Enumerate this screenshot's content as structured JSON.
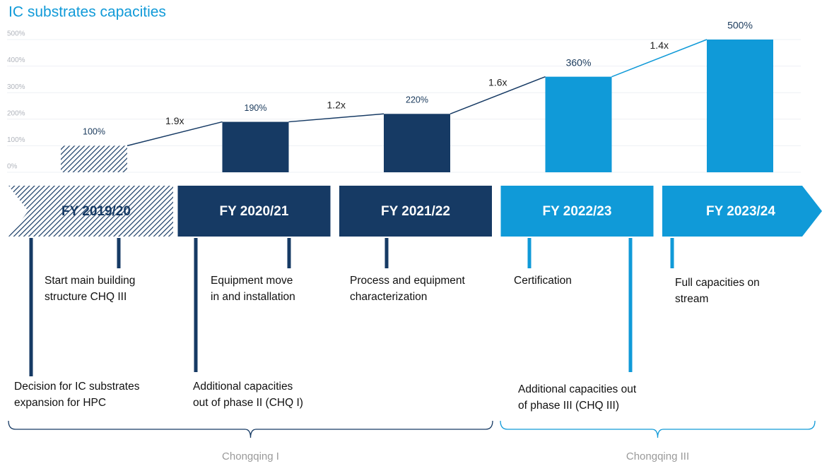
{
  "chart_data": {
    "type": "bar",
    "title": "IC substrates capacities",
    "categories": [
      "FY 2019/20",
      "FY 2020/21",
      "FY 2021/22",
      "FY 2022/23",
      "FY 2023/24"
    ],
    "values": [
      100,
      190,
      220,
      360,
      500
    ],
    "value_labels": [
      "100%",
      "190%",
      "220%",
      "360%",
      "500%"
    ],
    "colors": [
      "#163a64",
      "#163a64",
      "#163a64",
      "#109ad8",
      "#109ad8"
    ],
    "hatched": [
      true,
      false,
      false,
      false,
      false
    ],
    "growth_labels": [
      "1.9x",
      "1.2x",
      "1.6x",
      "1.4x"
    ],
    "ylim": [
      0,
      500
    ],
    "yticks": [
      {
        "value": 0,
        "label": "0%"
      },
      {
        "value": 100,
        "label": "100%"
      },
      {
        "value": 200,
        "label": "200%"
      },
      {
        "value": 300,
        "label": "300%"
      },
      {
        "value": 400,
        "label": "400%"
      },
      {
        "value": 500,
        "label": "500%"
      }
    ],
    "grid": true
  },
  "milestones": [
    {
      "lines": [
        "Decision for IC substrates",
        "expansion for HPC"
      ],
      "color": "#163a64"
    },
    {
      "lines": [
        "Start main building",
        "structure CHQ III"
      ],
      "color": "#163a64"
    },
    {
      "lines": [
        "Equipment move",
        "in and installation"
      ],
      "color": "#163a64"
    },
    {
      "lines": [
        "Additional capacities",
        "out of phase II (CHQ I)"
      ],
      "color": "#163a64"
    },
    {
      "lines": [
        "Process and equipment",
        "characterization"
      ],
      "color": "#163a64"
    },
    {
      "lines": [
        "Certification"
      ],
      "color": "#109ad8"
    },
    {
      "lines": [
        "Additional capacities out",
        "of phase III (CHQ III)"
      ],
      "color": "#109ad8"
    },
    {
      "lines": [
        "Full capacities on",
        "stream"
      ],
      "color": "#109ad8"
    }
  ],
  "regions": [
    {
      "label": "Chongqing I",
      "color": "#163a64"
    },
    {
      "label": "Chongqing III",
      "color": "#109ad8"
    }
  ]
}
